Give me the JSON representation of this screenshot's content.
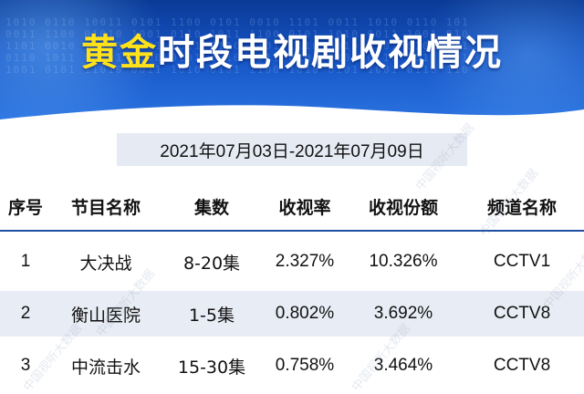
{
  "header": {
    "title_part1": "黄金",
    "title_part2": "时段电视剧收视情况"
  },
  "date_range": "2021年07月03日-2021年07月09日",
  "table": {
    "columns": [
      "序号",
      "节目名称",
      "集数",
      "收视率",
      "收视份额",
      "频道名称"
    ],
    "rows": [
      {
        "rank": "1",
        "name": "大决战",
        "episodes": "8-20集",
        "rating": "2.327%",
        "share": "10.326%",
        "channel": "CCTV1"
      },
      {
        "rank": "2",
        "name": "衡山医院",
        "episodes": "1-5集",
        "rating": "0.802%",
        "share": "3.692%",
        "channel": "CCTV8"
      },
      {
        "rank": "3",
        "name": "中流击水",
        "episodes": "15-30集",
        "rating": "0.758%",
        "share": "3.464%",
        "channel": "CCTV8"
      }
    ]
  },
  "watermark": "中国视听大数据",
  "colors": {
    "header_blue": "#1553c4",
    "title_accent": "#ffe21a",
    "divider_blue": "#1f4fa3",
    "row_alt": "#e8ecf4"
  }
}
